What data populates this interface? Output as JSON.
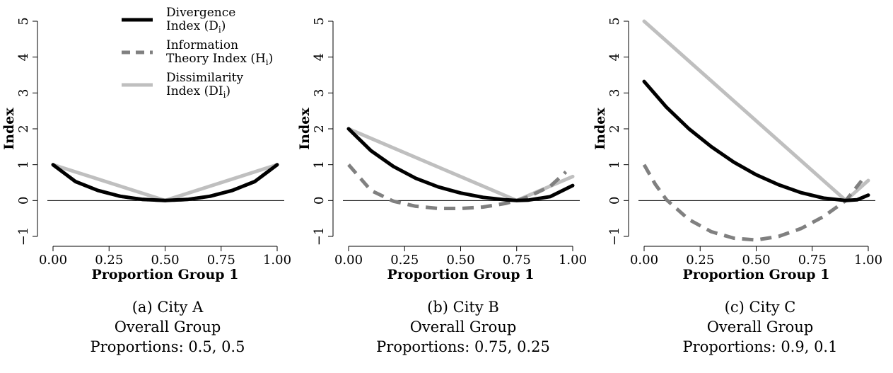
{
  "figure": {
    "captions": [
      {
        "label": "(a) City A",
        "line2": "Overall Group",
        "line3": "Proportions: 0.5, 0.5"
      },
      {
        "label": "(b) City B",
        "line2": "Overall Group",
        "line3": "Proportions: 0.75, 0.25"
      },
      {
        "label": "(c) City C",
        "line2": "Overall Group",
        "line3": "Proportions: 0.9, 0.1"
      }
    ]
  },
  "chart_data": [
    {
      "type": "line",
      "title": "",
      "xlabel": "Proportion Group 1",
      "ylabel": "Index",
      "xlim": [
        0,
        1
      ],
      "ylim": [
        -1,
        5
      ],
      "x_ticks": [
        "0.00",
        "0.25",
        "0.50",
        "0.75",
        "1.00"
      ],
      "y_ticks": [
        "−1",
        "0",
        "1",
        "2",
        "3",
        "4",
        "5"
      ],
      "reference_line_y": 0,
      "overall_proportion_group1": 0.5,
      "legend": {
        "placement": "top-left",
        "entries": [
          {
            "series": 0,
            "line1": "Divergence",
            "line2_main": "Index (D",
            "line2_sub": "i",
            "line2_end": ")"
          },
          {
            "series": 1,
            "line1": "Information",
            "line2_main": "Theory Index (H",
            "line2_sub": "i",
            "line2_end": ")"
          },
          {
            "series": 2,
            "line1": "Dissimilarity",
            "line2_main": "Index (DI",
            "line2_sub": "i",
            "line2_end": ")"
          }
        ]
      },
      "series": [
        {
          "name": "Divergence Index (Di)",
          "color": "#000000",
          "style": "solid",
          "x": [
            0,
            0.1,
            0.2,
            0.3,
            0.4,
            0.5,
            0.6,
            0.7,
            0.8,
            0.9,
            1.0
          ],
          "y": [
            1.0,
            0.53,
            0.28,
            0.12,
            0.03,
            0.0,
            0.03,
            0.12,
            0.28,
            0.53,
            1.0
          ]
        },
        {
          "name": "Information Theory Index (Hi)",
          "color": "#808080",
          "style": "dashed",
          "x": [
            0,
            0.1,
            0.2,
            0.3,
            0.4,
            0.5,
            0.6,
            0.7,
            0.8,
            0.9,
            1.0
          ],
          "y": [
            1.0,
            0.53,
            0.28,
            0.12,
            0.03,
            0.0,
            0.03,
            0.12,
            0.28,
            0.53,
            1.0
          ]
        },
        {
          "name": "Dissimilarity Index (DIi)",
          "color": "#bfbfbf",
          "style": "solid",
          "x": [
            0,
            0.5,
            1.0
          ],
          "y": [
            1.0,
            0.0,
            1.0
          ]
        }
      ]
    },
    {
      "type": "line",
      "title": "",
      "xlabel": "Proportion Group 1",
      "ylabel": "Index",
      "xlim": [
        0,
        1
      ],
      "ylim": [
        -1,
        5
      ],
      "x_ticks": [
        "0.00",
        "0.25",
        "0.50",
        "0.75",
        "1.00"
      ],
      "y_ticks": [
        "−1",
        "0",
        "1",
        "2",
        "3",
        "4",
        "5"
      ],
      "reference_line_y": 0,
      "overall_proportion_group1": 0.75,
      "series": [
        {
          "name": "Divergence Index (Di)",
          "color": "#000000",
          "style": "solid",
          "x": [
            0,
            0.1,
            0.2,
            0.3,
            0.4,
            0.5,
            0.6,
            0.7,
            0.75,
            0.8,
            0.9,
            1.0
          ],
          "y": [
            2.0,
            1.39,
            0.95,
            0.62,
            0.38,
            0.21,
            0.09,
            0.02,
            0.0,
            0.01,
            0.11,
            0.42
          ]
        },
        {
          "name": "Information Theory Index (Hi)",
          "color": "#808080",
          "style": "dashed",
          "x": [
            0,
            0.1,
            0.2,
            0.3,
            0.4,
            0.5,
            0.6,
            0.7,
            0.75,
            0.8,
            0.9,
            0.97
          ],
          "y": [
            1.0,
            0.28,
            -0.02,
            -0.16,
            -0.22,
            -0.22,
            -0.18,
            -0.08,
            0.0,
            0.1,
            0.4,
            0.8
          ]
        },
        {
          "name": "Dissimilarity Index (DIi)",
          "color": "#bfbfbf",
          "style": "solid",
          "x": [
            0,
            0.75,
            1.0
          ],
          "y": [
            2.0,
            0.0,
            0.67
          ]
        }
      ]
    },
    {
      "type": "line",
      "title": "",
      "xlabel": "Proportion Group 1",
      "ylabel": "Index",
      "xlim": [
        0,
        1
      ],
      "ylim": [
        -1,
        5
      ],
      "x_ticks": [
        "0.00",
        "0.25",
        "0.50",
        "0.75",
        "1.00"
      ],
      "y_ticks": [
        "−1",
        "0",
        "1",
        "2",
        "3",
        "4",
        "5"
      ],
      "reference_line_y": 0,
      "overall_proportion_group1": 0.9,
      "series": [
        {
          "name": "Divergence Index (Di)",
          "color": "#000000",
          "style": "solid",
          "x": [
            0,
            0.1,
            0.2,
            0.3,
            0.4,
            0.5,
            0.6,
            0.7,
            0.8,
            0.9,
            0.95,
            1.0
          ],
          "y": [
            3.32,
            2.6,
            2.0,
            1.5,
            1.07,
            0.72,
            0.44,
            0.22,
            0.07,
            0.0,
            0.02,
            0.15
          ]
        },
        {
          "name": "Information Theory Index (Hi)",
          "color": "#808080",
          "style": "dashed",
          "x": [
            0,
            0.05,
            0.1,
            0.2,
            0.3,
            0.4,
            0.5,
            0.6,
            0.7,
            0.8,
            0.9,
            0.97
          ],
          "y": [
            1.0,
            0.45,
            0.02,
            -0.53,
            -0.87,
            -1.05,
            -1.1,
            -1.0,
            -0.78,
            -0.45,
            0.0,
            0.55
          ]
        },
        {
          "name": "Dissimilarity Index (DIi)",
          "color": "#bfbfbf",
          "style": "solid",
          "x": [
            0,
            0.9,
            1.0
          ],
          "y": [
            5.0,
            0.0,
            0.56
          ]
        }
      ]
    }
  ]
}
